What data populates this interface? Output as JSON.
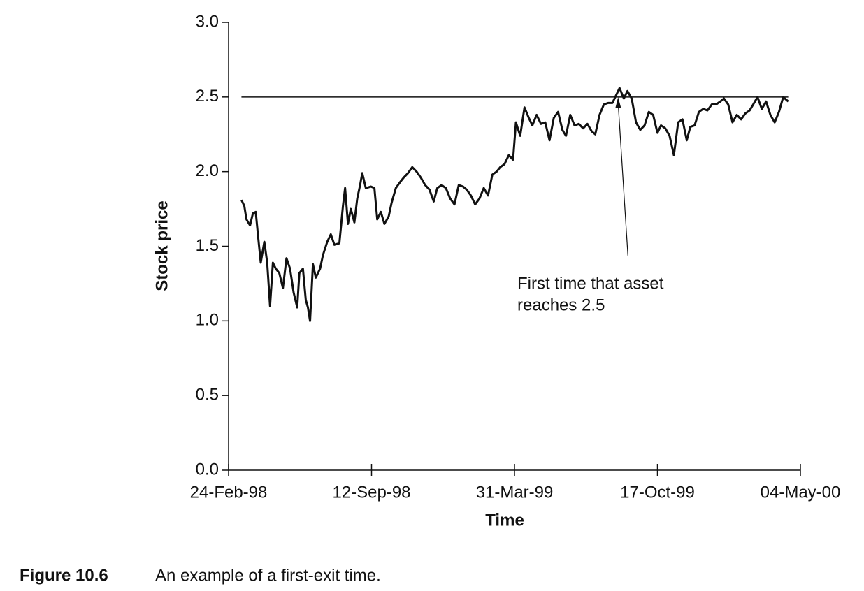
{
  "chart_data": {
    "type": "line",
    "xlabel": "Time",
    "ylabel": "Stock price",
    "xlim": [
      "1998-02-24",
      "2000-05-04"
    ],
    "xticks": [
      {
        "value": "1998-02-24",
        "label": "24-Feb-98"
      },
      {
        "value": "1998-09-12",
        "label": "12-Sep-98"
      },
      {
        "value": "1999-03-31",
        "label": "31-Mar-99"
      },
      {
        "value": "1999-10-17",
        "label": "17-Oct-99"
      },
      {
        "value": "2000-05-04",
        "label": "04-May-00"
      }
    ],
    "ylim": [
      0,
      3
    ],
    "yticks": [
      {
        "value": 0,
        "label": "0.0"
      },
      0.5,
      {
        "value": 1,
        "label": "1.0"
      },
      1.5,
      {
        "value": 2,
        "label": "2.0"
      },
      2.5,
      {
        "value": 3,
        "label": "3.0"
      }
    ],
    "hline": 2.5,
    "annotation": {
      "lines": [
        "First time that asset",
        "reaches 2.5"
      ],
      "x": "1999-08-23",
      "y": 2.5
    },
    "x": [
      "1998-03-14",
      "1998-03-18",
      "1998-03-21",
      "1998-03-26",
      "1998-03-30",
      "1998-04-03",
      "1998-04-06",
      "1998-04-10",
      "1998-04-15",
      "1998-04-19",
      "1998-04-23",
      "1998-04-27",
      "1998-05-01",
      "1998-05-06",
      "1998-05-11",
      "1998-05-16",
      "1998-05-21",
      "1998-05-26",
      "1998-05-31",
      "1998-06-03",
      "1998-06-08",
      "1998-06-12",
      "1998-06-15",
      "1998-06-18",
      "1998-06-22",
      "1998-06-26",
      "1998-07-02",
      "1998-07-06",
      "1998-07-12",
      "1998-07-17",
      "1998-07-22",
      "1998-07-29",
      "1998-08-03",
      "1998-08-06",
      "1998-08-10",
      "1998-08-14",
      "1998-08-19",
      "1998-08-23",
      "1998-08-27",
      "1998-08-30",
      "1998-09-04",
      "1998-09-11",
      "1998-09-16",
      "1998-09-20",
      "1998-09-25",
      "1998-09-30",
      "1998-10-06",
      "1998-10-10",
      "1998-10-16",
      "1998-10-22",
      "1998-10-27",
      "1998-11-02",
      "1998-11-08",
      "1998-11-14",
      "1998-11-20",
      "1998-11-26",
      "1998-12-02",
      "1998-12-08",
      "1998-12-13",
      "1998-12-19",
      "1998-12-25",
      "1998-12-31",
      "1999-01-06",
      "1999-01-12",
      "1999-01-18",
      "1999-01-23",
      "1999-01-29",
      "1999-02-04",
      "1999-02-10",
      "1999-02-16",
      "1999-02-22",
      "1999-02-28",
      "1999-03-06",
      "1999-03-11",
      "1999-03-17",
      "1999-03-23",
      "1999-03-29",
      "1999-04-02",
      "1999-04-08",
      "1999-04-14",
      "1999-04-20",
      "1999-04-25",
      "1999-05-01",
      "1999-05-07",
      "1999-05-13",
      "1999-05-19",
      "1999-05-25",
      "1999-05-31",
      "1999-06-06",
      "1999-06-11",
      "1999-06-17",
      "1999-06-23",
      "1999-06-29",
      "1999-07-05",
      "1999-07-11",
      "1999-07-17",
      "1999-07-22",
      "1999-07-28",
      "1999-08-03",
      "1999-08-09",
      "1999-08-15",
      "1999-08-19",
      "1999-08-25",
      "1999-08-31",
      "1999-09-05",
      "1999-09-11",
      "1999-09-17",
      "1999-09-23",
      "1999-09-29",
      "1999-10-05",
      "1999-10-11",
      "1999-10-17",
      "1999-10-22",
      "1999-10-28",
      "1999-11-03",
      "1999-11-09",
      "1999-11-15",
      "1999-11-21",
      "1999-11-27",
      "1999-12-02",
      "1999-12-08",
      "1999-12-14",
      "1999-12-20",
      "1999-12-26",
      "2000-01-01",
      "2000-01-07",
      "2000-01-13",
      "2000-01-18",
      "2000-01-24",
      "2000-01-30",
      "2000-02-05",
      "2000-02-11",
      "2000-02-17",
      "2000-02-23",
      "2000-02-28",
      "2000-03-05",
      "2000-03-11",
      "2000-03-17",
      "2000-03-23",
      "2000-03-29",
      "2000-04-04",
      "2000-04-10",
      "2000-04-17"
    ],
    "series": [
      {
        "name": "Stock price",
        "color": "#111111",
        "values": [
          1.81,
          1.77,
          1.68,
          1.64,
          1.72,
          1.73,
          1.58,
          1.39,
          1.53,
          1.39,
          1.1,
          1.39,
          1.35,
          1.32,
          1.22,
          1.42,
          1.35,
          1.19,
          1.09,
          1.32,
          1.35,
          1.14,
          1.09,
          1.0,
          1.38,
          1.29,
          1.35,
          1.44,
          1.53,
          1.58,
          1.51,
          1.52,
          1.77,
          1.89,
          1.65,
          1.75,
          1.66,
          1.82,
          1.91,
          1.99,
          1.89,
          1.9,
          1.89,
          1.68,
          1.73,
          1.65,
          1.7,
          1.79,
          1.89,
          1.93,
          1.96,
          1.99,
          2.03,
          2.0,
          1.96,
          1.91,
          1.88,
          1.8,
          1.89,
          1.91,
          1.89,
          1.82,
          1.78,
          1.91,
          1.9,
          1.88,
          1.84,
          1.78,
          1.82,
          1.89,
          1.84,
          1.98,
          2.0,
          2.03,
          2.05,
          2.11,
          2.08,
          2.33,
          2.24,
          2.43,
          2.36,
          2.31,
          2.38,
          2.32,
          2.33,
          2.21,
          2.36,
          2.4,
          2.28,
          2.24,
          2.38,
          2.31,
          2.32,
          2.29,
          2.32,
          2.27,
          2.25,
          2.38,
          2.45,
          2.46,
          2.46,
          2.5,
          2.56,
          2.49,
          2.54,
          2.49,
          2.33,
          2.28,
          2.31,
          2.4,
          2.38,
          2.26,
          2.31,
          2.29,
          2.24,
          2.11,
          2.33,
          2.35,
          2.21,
          2.3,
          2.31,
          2.4,
          2.42,
          2.41,
          2.45,
          2.45,
          2.47,
          2.49,
          2.45,
          2.33,
          2.38,
          2.35,
          2.39,
          2.41,
          2.45,
          2.5,
          2.42,
          2.47,
          2.38,
          2.33,
          2.4,
          2.5,
          2.47
        ]
      }
    ]
  },
  "caption": {
    "label": "Figure 10.6",
    "text": "An example of a first-exit time."
  }
}
